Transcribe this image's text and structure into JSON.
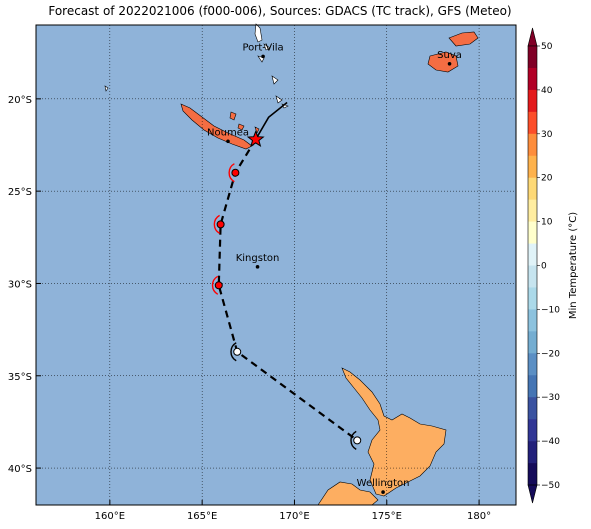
{
  "title": "Forecast of 2022021006 (f000-006), Sources: GDACS (TC track), GFS (Meteo)",
  "map": {
    "lon_range": [
      156,
      182
    ],
    "lat_range": [
      -42,
      -16
    ],
    "lon_ticks": [
      {
        "value": 160,
        "label": "160°E"
      },
      {
        "value": 165,
        "label": "165°E"
      },
      {
        "value": 170,
        "label": "170°E"
      },
      {
        "value": 175,
        "label": "175°E"
      },
      {
        "value": 180,
        "label": "180°"
      }
    ],
    "lat_ticks": [
      {
        "value": -20,
        "label": "20°S"
      },
      {
        "value": -25,
        "label": "25°S"
      },
      {
        "value": -30,
        "label": "30°S"
      },
      {
        "value": -35,
        "label": "35°S"
      },
      {
        "value": -40,
        "label": "40°S"
      }
    ],
    "ocean_color": "#8fb3d9",
    "grid": true
  },
  "cities": [
    {
      "name": "Port-Vila",
      "lon": 168.3,
      "lat": -17.7
    },
    {
      "name": "Suva",
      "lon": 178.4,
      "lat": -18.1
    },
    {
      "name": "Noumea",
      "lon": 166.4,
      "lat": -22.3
    },
    {
      "name": "Kingston",
      "lon": 168.0,
      "lat": -29.1
    },
    {
      "name": "Wellington",
      "lon": 174.8,
      "lat": -41.3
    }
  ],
  "track": {
    "current_position": {
      "lon": 167.9,
      "lat": -22.2
    },
    "forecast_points": [
      {
        "lon": 166.8,
        "lat": -24.0,
        "color": "#ff0000"
      },
      {
        "lon": 166.0,
        "lat": -26.8,
        "color": "#ff0000"
      },
      {
        "lon": 165.9,
        "lat": -30.1,
        "color": "#ff0000"
      },
      {
        "lon": 166.9,
        "lat": -33.7,
        "color": "#ffffff"
      },
      {
        "lon": 173.4,
        "lat": -38.5,
        "color": "#ffffff"
      }
    ],
    "past_track": [
      {
        "lon": 169.6,
        "lat": -20.2
      },
      {
        "lon": 168.6,
        "lat": -21.0
      },
      {
        "lon": 167.9,
        "lat": -22.2
      }
    ]
  },
  "colorbar": {
    "label": "Min Temperature (°C)",
    "ticks": [
      "50",
      "40",
      "30",
      "20",
      "10",
      "0",
      "−10",
      "−20",
      "−30",
      "−40",
      "−50"
    ],
    "colors": [
      "#800026",
      "#b10026",
      "#e31a1c",
      "#fc4e2a",
      "#fd8d3c",
      "#feb24c",
      "#fed976",
      "#ffeda0",
      "#ffffcc",
      "#e0f3f8",
      "#c6e4ef",
      "#abd9e9",
      "#8cc2de",
      "#74add1",
      "#5b8fc4",
      "#4575b4",
      "#3a52a0",
      "#313695",
      "#22207a",
      "#150b5a"
    ]
  }
}
